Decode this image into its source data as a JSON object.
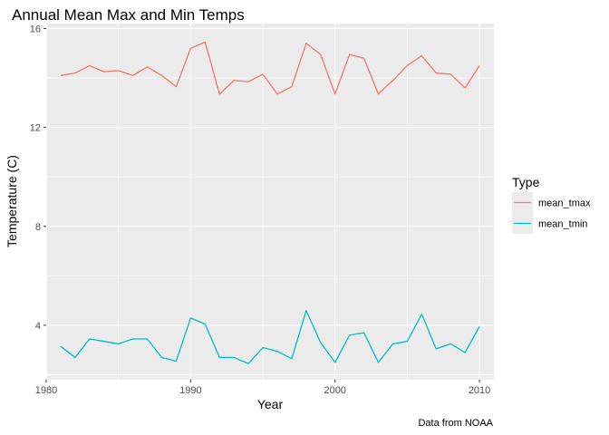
{
  "chart_data": {
    "type": "line",
    "title": "Annual Mean Max and Min Temps",
    "xlabel": "Year",
    "ylabel": "Temperature (C)",
    "caption": "Data from NOAA",
    "xlim": [
      1980,
      2011
    ],
    "ylim": [
      1.8,
      16.2
    ],
    "x_ticks": [
      1980,
      1990,
      2000,
      2010
    ],
    "y_ticks": [
      4,
      8,
      12,
      16
    ],
    "grid": true,
    "legend": {
      "title": "Type",
      "position": "right"
    },
    "x": [
      1981,
      1982,
      1983,
      1984,
      1985,
      1986,
      1987,
      1988,
      1989,
      1990,
      1991,
      1992,
      1993,
      1994,
      1995,
      1996,
      1997,
      1998,
      1999,
      2000,
      2001,
      2002,
      2003,
      2004,
      2005,
      2006,
      2007,
      2008,
      2009,
      2010
    ],
    "series": [
      {
        "name": "mean_tmax",
        "color": "#F8766D",
        "values": [
          14.1,
          14.2,
          14.5,
          14.25,
          14.3,
          14.1,
          14.45,
          14.1,
          13.65,
          15.2,
          15.45,
          13.35,
          13.9,
          13.85,
          14.15,
          13.35,
          13.65,
          15.4,
          14.95,
          13.35,
          14.95,
          14.8,
          13.35,
          13.9,
          14.5,
          14.9,
          14.2,
          14.15,
          13.6,
          14.5
        ]
      },
      {
        "name": "mean_tmin",
        "color": "#00BFC4",
        "values": [
          3.15,
          2.7,
          3.45,
          3.35,
          3.25,
          3.45,
          3.45,
          2.7,
          2.55,
          4.3,
          4.05,
          2.7,
          2.7,
          2.45,
          3.1,
          2.95,
          2.65,
          4.6,
          3.3,
          2.5,
          3.6,
          3.7,
          2.5,
          3.25,
          3.35,
          4.45,
          3.05,
          3.25,
          2.9,
          3.95
        ]
      }
    ]
  }
}
